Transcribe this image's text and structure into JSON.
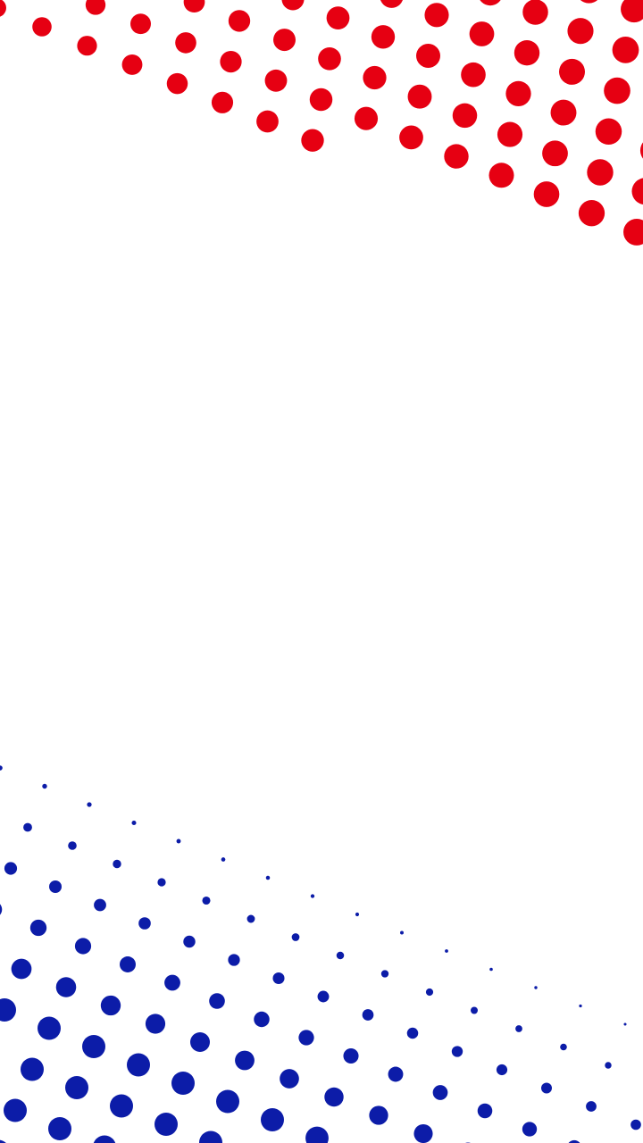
{
  "background": {
    "color": "#ffffff",
    "top_pattern": {
      "name": "red-halftone-wave",
      "color": "#e60012"
    },
    "bottom_pattern": {
      "name": "blue-halftone-wave",
      "color": "#0c1ca8"
    }
  }
}
